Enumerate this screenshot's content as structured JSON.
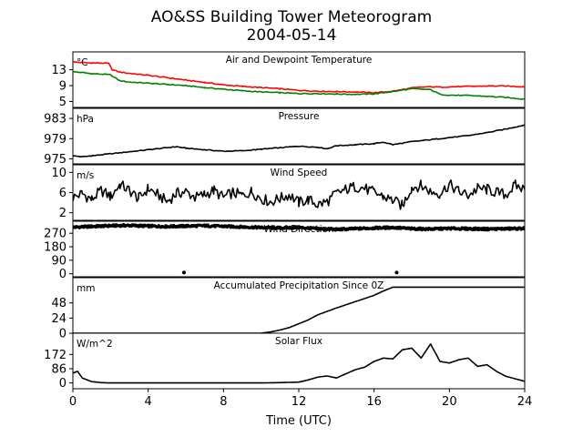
{
  "title": "AO&SS Building Tower Meteorogram",
  "subtitle": "2004-05-14",
  "xlabel": "Time (UTC)",
  "colors": {
    "temperature": "#ff0000",
    "dewpoint": "#008000",
    "default": "#000000"
  },
  "chart_data": {
    "type": "line",
    "x_ticks": [
      "0",
      "4",
      "8",
      "12",
      "16",
      "20",
      "24"
    ],
    "xlim": [
      0,
      24
    ],
    "panels": [
      {
        "title": "Air and Dewpoint Temperature",
        "unit": "°C",
        "ylim": [
          3.5,
          17.5
        ],
        "yticks": [
          5,
          9,
          13
        ],
        "ytick_labels": [
          "5",
          "9",
          "13"
        ],
        "series": [
          {
            "color": "#ff0000",
            "style": "line",
            "x": [
              0,
              0.5,
              1,
              1.5,
              1.9,
              2.1,
              2.5,
              3,
              4,
              5,
              6,
              7,
              8,
              9,
              10,
              11,
              12,
              13,
              14,
              15,
              16,
              17,
              18,
              18.5,
              19,
              19.5,
              20,
              21,
              22,
              23,
              24
            ],
            "y": [
              15.0,
              14.8,
              14.7,
              14.7,
              14.6,
              13.0,
              12.4,
              12.1,
              11.6,
              11.0,
              10.4,
              9.8,
              9.2,
              8.8,
              8.5,
              8.2,
              7.8,
              7.6,
              7.5,
              7.4,
              7.2,
              7.6,
              8.4,
              8.6,
              8.7,
              8.6,
              8.7,
              8.8,
              8.9,
              8.9,
              8.7
            ]
          },
          {
            "color": "#008000",
            "style": "line",
            "x": [
              0,
              0.5,
              1,
              1.5,
              2,
              2.5,
              3,
              4,
              5,
              6,
              7,
              8,
              9,
              10,
              11,
              12,
              13,
              14,
              15,
              16,
              17,
              18,
              19,
              19.5,
              20,
              21,
              22,
              23,
              24
            ],
            "y": [
              12.5,
              12.3,
              12.0,
              11.9,
              11.7,
              10.2,
              9.9,
              9.6,
              9.3,
              9.0,
              8.5,
              8.1,
              7.7,
              7.4,
              7.2,
              7.0,
              7.0,
              6.9,
              6.8,
              6.9,
              7.5,
              8.2,
              8.0,
              6.8,
              6.6,
              6.5,
              6.3,
              6.0,
              5.6
            ]
          }
        ]
      },
      {
        "title": "Pressure",
        "unit": "hPa",
        "ylim": [
          974,
          985
        ],
        "yticks": [
          975,
          979,
          983
        ],
        "ytick_labels": [
          "975",
          "979",
          "983"
        ],
        "series": [
          {
            "color": "#000000",
            "style": "line",
            "x": [
              0,
              0.5,
              1,
              2,
              3,
              4,
              5,
              5.5,
              6,
              7,
              8,
              9,
              10,
              11,
              12,
              13,
              13.5,
              14,
              15,
              16,
              16.5,
              17,
              18,
              19,
              20,
              21,
              22,
              23,
              24
            ],
            "y": [
              975.6,
              975.4,
              975.6,
              976.0,
              976.4,
              976.8,
              977.2,
              977.4,
              977.1,
              976.8,
              976.5,
              976.6,
              976.9,
              977.2,
              977.5,
              977.3,
              977.0,
              977.6,
              977.8,
              978.0,
              978.3,
              977.8,
              978.4,
              978.8,
              979.2,
              979.6,
              980.2,
              980.9,
              981.7
            ]
          }
        ]
      },
      {
        "title": "Wind Speed",
        "unit": "m/s",
        "ylim": [
          0.5,
          11.5
        ],
        "yticks": [
          2,
          6,
          10
        ],
        "ytick_labels": [
          "2",
          "6",
          "10"
        ],
        "series": [
          {
            "color": "#000000",
            "style": "line",
            "x": [
              0,
              0.5,
              1,
              1.5,
              2,
              2.5,
              3,
              3.5,
              4,
              4.5,
              5,
              5.5,
              6,
              6.5,
              7,
              7.5,
              8,
              8.5,
              9,
              9.5,
              10,
              10.5,
              11,
              11.5,
              12,
              12.5,
              13,
              13.5,
              14,
              14.5,
              15,
              15.5,
              16,
              16.5,
              17,
              17.5,
              18,
              18.5,
              19,
              19.5,
              20,
              20.5,
              21,
              21.5,
              22,
              22.5,
              23,
              23.5,
              24
            ],
            "y": [
              5.0,
              5.8,
              4.6,
              6.4,
              5.2,
              7.6,
              6.4,
              4.8,
              6.8,
              5.6,
              4.2,
              5.8,
              6.2,
              5.0,
              5.6,
              6.4,
              5.0,
              6.0,
              5.4,
              6.2,
              4.8,
              4.2,
              4.8,
              5.6,
              4.0,
              4.6,
              3.6,
              4.2,
              5.8,
              6.6,
              7.2,
              6.8,
              6.0,
              5.2,
              4.4,
              3.4,
              7.0,
              7.4,
              6.2,
              5.8,
              7.6,
              6.2,
              5.4,
              6.8,
              6.6,
              6.0,
              5.6,
              7.4,
              6.6
            ]
          }
        ]
      },
      {
        "title": "Wind Direction",
        "unit": "",
        "ylim": [
          -20,
          350
        ],
        "yticks": [
          0,
          90,
          180,
          270
        ],
        "ytick_labels": [
          "0",
          "90",
          "180",
          "270"
        ],
        "series": [
          {
            "color": "#000000",
            "style": "points",
            "x": [
              0,
              1,
              2,
              3,
              4,
              5,
              6,
              7,
              8,
              9,
              10,
              11,
              12,
              13,
              14,
              15,
              16,
              17,
              18,
              19,
              20,
              21,
              22,
              23,
              24
            ],
            "y": [
              310,
              315,
              320,
              322,
              318,
              315,
              318,
              320,
              316,
              312,
              308,
              305,
              308,
              300,
              295,
              300,
              305,
              308,
              300,
              298,
              302,
              300,
              298,
              300,
              302
            ]
          },
          {
            "color": "#000000",
            "style": "dots",
            "x": [
              5.9,
              17.2
            ],
            "y": [
              8,
              8
            ]
          }
        ]
      },
      {
        "title": "Accumulated Precipitation Since 0Z",
        "unit": "mm",
        "ylim": [
          0,
          88
        ],
        "yticks": [
          0,
          24,
          48
        ],
        "ytick_labels": [
          "0",
          "24",
          "48"
        ],
        "series": [
          {
            "color": "#000000",
            "style": "line",
            "x": [
              0,
              10,
              10.5,
              11,
              11.5,
              12,
              12.5,
              13,
              14,
              15,
              16,
              16.5,
              17,
              24
            ],
            "y": [
              0,
              0,
              2,
              5,
              9,
              15,
              21,
              29,
              40,
              50,
              60,
              67,
              73,
              73
            ]
          }
        ]
      },
      {
        "title": "Solar Flux",
        "unit": "W/m^2",
        "ylim": [
          -35,
          300
        ],
        "yticks": [
          0,
          86,
          172
        ],
        "ytick_labels": [
          "0",
          "86",
          "172"
        ],
        "series": [
          {
            "color": "#000000",
            "style": "line",
            "x": [
              0,
              0.25,
              0.5,
              1,
              1.5,
              2,
              3,
              4,
              5,
              6,
              7,
              8,
              9,
              10,
              11,
              12,
              12.5,
              13,
              13.5,
              14,
              14.5,
              15,
              15.5,
              16,
              16.5,
              17,
              17.5,
              18,
              18.5,
              19,
              19.5,
              20,
              20.5,
              21,
              21.5,
              22,
              22.5,
              23,
              23.5,
              24
            ],
            "y": [
              60,
              70,
              30,
              8,
              2,
              0,
              0,
              0,
              0,
              0,
              0,
              0,
              0,
              0,
              2,
              5,
              18,
              35,
              42,
              30,
              55,
              80,
              95,
              130,
              150,
              145,
              200,
              210,
              150,
              235,
              130,
              120,
              140,
              150,
              100,
              110,
              70,
              40,
              25,
              10
            ]
          }
        ]
      }
    ]
  }
}
